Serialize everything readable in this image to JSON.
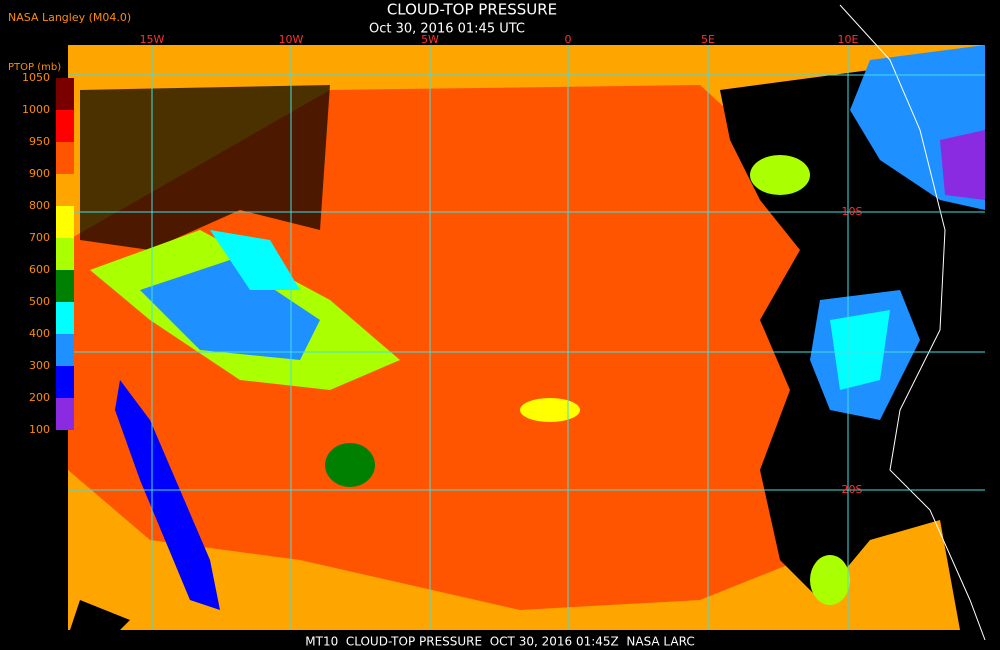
{
  "header": {
    "source": "NASA Langley (M04.0)",
    "title": "CLOUD-TOP PRESSURE",
    "subtitle": "Oct 30, 2016 01:45 UTC"
  },
  "legend": {
    "label": "PTOP (mb)",
    "ticks": [
      1050,
      1000,
      950,
      900,
      800,
      700,
      600,
      500,
      400,
      300,
      200,
      100
    ],
    "colors": [
      "#7a0000",
      "#ff0000",
      "#ff5500",
      "#ffa500",
      "#ffff00",
      "#aaff00",
      "#008000",
      "#00ffff",
      "#1e90ff",
      "#0000ff",
      "#8a2be2"
    ]
  },
  "map": {
    "longitudes": [
      "15W",
      "10W",
      "5W",
      "0",
      "5E",
      "10E"
    ],
    "latitudes": [
      "10S",
      "20S"
    ]
  },
  "footer": "MT10  CLOUD-TOP PRESSURE  OCT 30, 2016 01:45Z  NASA LARC"
}
